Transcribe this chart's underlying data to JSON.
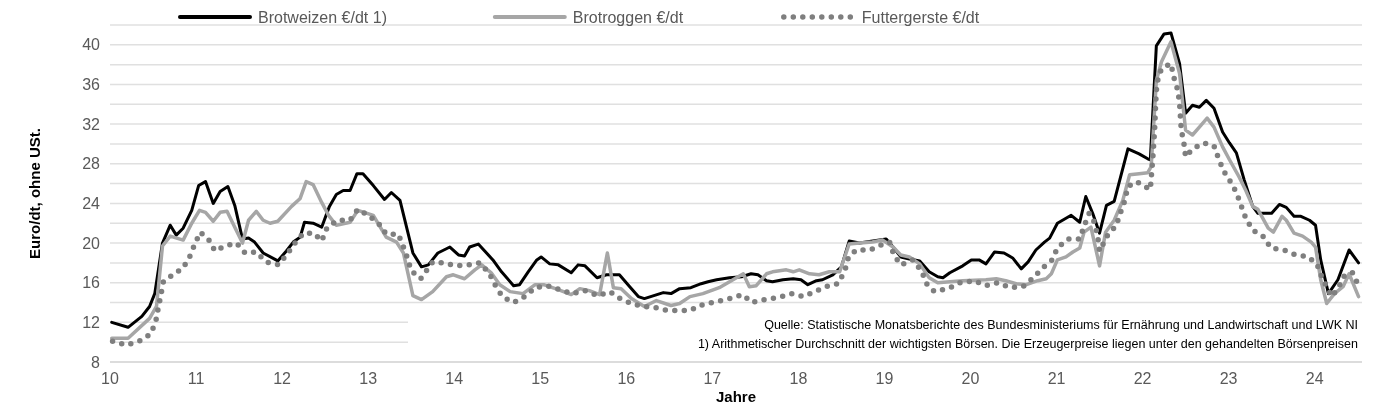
{
  "chart_data": {
    "type": "line",
    "xlabel": "Jahre",
    "ylabel": "Euro/dt, ohne USt.",
    "xlim": [
      10,
      24.55
    ],
    "xticks": [
      10,
      11,
      12,
      13,
      14,
      15,
      16,
      17,
      18,
      19,
      20,
      21,
      22,
      23,
      24
    ],
    "ylim": [
      8,
      42
    ],
    "yticks": [
      8,
      {
        "value": 10,
        "label": null
      },
      12,
      {
        "value": 14,
        "label": null
      },
      16,
      {
        "value": 18,
        "label": null
      },
      20,
      {
        "value": 22,
        "label": null
      },
      24,
      {
        "value": 26,
        "label": null
      },
      28,
      {
        "value": 30,
        "label": null
      },
      32,
      {
        "value": 34,
        "label": null
      },
      36,
      {
        "value": 38,
        "label": null
      },
      40,
      {
        "value": 42,
        "label": null
      }
    ],
    "grid": "y",
    "legend": "top left",
    "marker": "none",
    "annotations": [
      "Quelle: Statistische Monatsberichte des Bundesministeriums für Ernährung und Landwirtschaft und LWK NI",
      "1) Arithmetischer Durchschnitt der wichtigsten Börsen. Die Erzeugerpreise liegen unter den gehandelten Börsenpreisen"
    ],
    "series": [
      {
        "name": "Brotweizen €/dt 1)",
        "color": "#000000",
        "line_style": "solid",
        "x": [
          10.02,
          10.21,
          10.37,
          10.46,
          10.52,
          10.61,
          10.7,
          10.77,
          10.85,
          10.95,
          11.03,
          11.11,
          11.2,
          11.28,
          11.37,
          11.45,
          11.54,
          11.61,
          11.68,
          11.78,
          11.95,
          12.05,
          12.13,
          12.21,
          12.26,
          12.36,
          12.46,
          12.55,
          12.63,
          12.71,
          12.79,
          12.87,
          12.94,
          13.06,
          13.19,
          13.27,
          13.37,
          13.52,
          13.62,
          13.7,
          13.81,
          13.95,
          14.05,
          14.12,
          14.18,
          14.28,
          14.45,
          14.55,
          14.69,
          14.76,
          14.86,
          14.96,
          15.01,
          15.11,
          15.21,
          15.36,
          15.44,
          15.52,
          15.66,
          15.77,
          15.92,
          16.04,
          16.14,
          16.21,
          16.43,
          16.52,
          16.62,
          16.75,
          16.87,
          16.95,
          17.05,
          17.2,
          17.34,
          17.45,
          17.53,
          17.63,
          17.7,
          17.82,
          17.94,
          18.03,
          18.11,
          18.21,
          18.28,
          18.4,
          18.5,
          18.59,
          18.71,
          19.02,
          19.1,
          19.19,
          19.29,
          19.41,
          19.52,
          19.62,
          19.68,
          19.76,
          19.91,
          20.01,
          20.1,
          20.18,
          20.28,
          20.39,
          20.49,
          20.59,
          20.67,
          20.76,
          20.86,
          20.92,
          21.01,
          21.17,
          21.27,
          21.34,
          21.42,
          21.5,
          21.58,
          21.67,
          21.83,
          21.96,
          22.06,
          22.09,
          22.16,
          22.25,
          22.33,
          22.43,
          22.5,
          22.58,
          22.66,
          22.74,
          22.83,
          22.93,
          23.01,
          23.09,
          23.18,
          23.28,
          23.34,
          23.5,
          23.59,
          23.67,
          23.76,
          23.84,
          23.94,
          24.01,
          24.07,
          24.16,
          24.27,
          24.4,
          24.51
        ],
        "values": [
          12.0,
          11.5,
          12.6,
          13.6,
          14.9,
          20.0,
          21.8,
          20.8,
          21.5,
          23.3,
          25.8,
          26.2,
          24.0,
          25.2,
          25.7,
          23.8,
          20.4,
          20.5,
          20.1,
          19.0,
          18.2,
          19.2,
          20.1,
          20.6,
          22.1,
          22.0,
          21.6,
          23.7,
          24.9,
          25.3,
          25.3,
          27.0,
          27.0,
          25.8,
          24.4,
          25.1,
          24.3,
          19.0,
          17.6,
          17.8,
          19.0,
          19.6,
          18.8,
          18.7,
          19.6,
          19.9,
          18.3,
          17.1,
          15.7,
          15.8,
          17.1,
          18.3,
          18.6,
          17.9,
          17.8,
          17.0,
          17.8,
          17.7,
          16.5,
          16.8,
          16.8,
          15.6,
          14.6,
          14.4,
          15.0,
          14.9,
          15.4,
          15.5,
          15.9,
          16.1,
          16.3,
          16.5,
          16.6,
          16.9,
          16.8,
          16.2,
          16.1,
          16.3,
          16.4,
          16.3,
          15.8,
          16.2,
          16.3,
          16.8,
          17.6,
          20.2,
          20.0,
          20.4,
          19.6,
          18.6,
          18.4,
          18.2,
          17.1,
          16.6,
          16.5,
          17.0,
          17.7,
          18.3,
          18.3,
          17.9,
          19.1,
          19.0,
          18.5,
          17.4,
          18.1,
          19.3,
          20.1,
          20.5,
          22.0,
          22.8,
          22.1,
          24.7,
          23.0,
          21.0,
          23.8,
          24.2,
          29.5,
          29.0,
          28.5,
          28.4,
          39.9,
          41.1,
          41.2,
          38.1,
          33.1,
          33.9,
          33.7,
          34.4,
          33.6,
          31.2,
          30.1,
          29.1,
          26.4,
          23.7,
          23.0,
          23.0,
          23.9,
          23.6,
          22.7,
          22.7,
          22.3,
          21.8,
          18.3,
          14.9,
          16.3,
          19.3,
          18.0
        ]
      },
      {
        "name": "Brotroggen €/dt",
        "color": "#a6a6a6",
        "line_style": "solid",
        "x": [
          10.02,
          10.21,
          10.46,
          10.54,
          10.61,
          10.7,
          10.85,
          10.95,
          11.04,
          11.11,
          11.2,
          11.28,
          11.36,
          11.45,
          11.54,
          11.61,
          11.7,
          11.78,
          11.86,
          11.95,
          12.11,
          12.21,
          12.28,
          12.36,
          12.46,
          12.54,
          12.63,
          12.79,
          12.88,
          13.06,
          13.21,
          13.33,
          13.41,
          13.52,
          13.62,
          13.75,
          13.91,
          13.99,
          14.12,
          14.24,
          14.32,
          14.43,
          14.53,
          14.65,
          14.8,
          14.94,
          15.04,
          15.21,
          15.36,
          15.46,
          15.57,
          15.69,
          15.78,
          15.85,
          15.94,
          16.06,
          16.21,
          16.35,
          16.52,
          16.62,
          16.74,
          16.89,
          17.08,
          17.2,
          17.36,
          17.43,
          17.51,
          17.63,
          17.7,
          17.86,
          17.94,
          18.01,
          18.13,
          18.24,
          18.36,
          18.48,
          18.59,
          18.71,
          18.86,
          18.98,
          19.1,
          19.19,
          19.29,
          19.41,
          19.52,
          19.62,
          19.76,
          19.91,
          20.18,
          20.3,
          20.41,
          20.53,
          20.65,
          20.78,
          20.88,
          20.94,
          21.01,
          21.11,
          21.19,
          21.27,
          21.32,
          21.4,
          21.5,
          21.57,
          21.67,
          21.77,
          21.85,
          21.96,
          22.06,
          22.1,
          22.16,
          22.22,
          22.33,
          22.43,
          22.5,
          22.58,
          22.66,
          22.75,
          22.83,
          22.93,
          23.01,
          23.12,
          23.2,
          23.28,
          23.34,
          23.46,
          23.52,
          23.62,
          23.67,
          23.76,
          23.86,
          23.96,
          24.01,
          24.07,
          24.14,
          24.23,
          24.33,
          24.4,
          24.51
        ],
        "values": [
          10.4,
          10.4,
          12.4,
          13.6,
          19.7,
          20.7,
          20.3,
          22.0,
          23.3,
          23.1,
          22.2,
          23.1,
          23.2,
          21.6,
          20.0,
          22.3,
          23.2,
          22.3,
          22.0,
          22.2,
          23.7,
          24.5,
          26.2,
          25.9,
          24.1,
          22.8,
          21.8,
          22.1,
          23.3,
          22.8,
          20.6,
          20.1,
          19.0,
          14.7,
          14.3,
          15.1,
          16.6,
          16.8,
          16.4,
          17.3,
          17.8,
          17.0,
          15.8,
          15.1,
          14.9,
          15.8,
          15.8,
          15.3,
          14.8,
          15.4,
          15.2,
          14.8,
          19.0,
          15.5,
          15.4,
          14.4,
          13.6,
          14.2,
          13.7,
          13.9,
          14.6,
          14.9,
          15.5,
          16.1,
          16.9,
          15.6,
          15.7,
          16.9,
          17.1,
          17.3,
          17.1,
          17.3,
          16.9,
          16.8,
          17.1,
          17.1,
          19.9,
          20.0,
          20.1,
          20.3,
          19.6,
          18.8,
          18.6,
          17.9,
          16.5,
          16.0,
          16.1,
          16.2,
          16.3,
          16.4,
          16.2,
          15.9,
          15.8,
          16.2,
          16.4,
          16.9,
          18.3,
          18.6,
          19.1,
          19.5,
          21.1,
          21.6,
          17.7,
          21.1,
          22.3,
          24.3,
          26.9,
          27.0,
          27.1,
          27.7,
          36.4,
          38.3,
          40.3,
          37.1,
          31.4,
          30.9,
          31.7,
          32.6,
          31.7,
          29.7,
          28.4,
          26.7,
          25.3,
          23.7,
          23.4,
          21.5,
          21.1,
          22.7,
          22.3,
          21.0,
          20.7,
          20.1,
          19.6,
          16.3,
          13.9,
          14.9,
          15.6,
          16.9,
          14.6
        ]
      },
      {
        "name": "Futtergerste €/dt",
        "color": "#7f7f7f",
        "line_style": "dotted",
        "x": [
          10.03,
          10.19,
          10.34,
          10.47,
          10.53,
          10.56,
          10.59,
          10.62,
          10.73,
          10.85,
          10.93,
          10.99,
          11.05,
          11.15,
          11.22,
          11.34,
          11.47,
          11.57,
          11.7,
          11.81,
          11.96,
          12.06,
          12.15,
          12.25,
          12.37,
          12.46,
          12.52,
          12.64,
          12.79,
          12.88,
          13.0,
          13.12,
          13.21,
          13.35,
          13.41,
          13.46,
          13.5,
          13.61,
          13.75,
          13.87,
          14.02,
          14.16,
          14.3,
          14.41,
          14.48,
          14.56,
          14.69,
          14.82,
          14.94,
          15.08,
          15.23,
          15.37,
          15.52,
          15.67,
          15.81,
          15.93,
          16.06,
          16.19,
          16.33,
          16.47,
          16.6,
          16.74,
          16.89,
          17.05,
          17.2,
          17.35,
          17.46,
          17.61,
          17.76,
          17.92,
          18.06,
          18.19,
          18.32,
          18.46,
          18.54,
          18.58,
          18.67,
          18.83,
          18.96,
          19.06,
          19.11,
          19.19,
          19.33,
          19.43,
          19.49,
          19.58,
          19.74,
          19.88,
          20.04,
          20.18,
          20.32,
          20.46,
          20.61,
          20.73,
          20.84,
          20.95,
          21.01,
          21.13,
          21.27,
          21.32,
          21.38,
          21.44,
          21.48,
          21.5,
          21.6,
          21.69,
          21.74,
          21.79,
          21.83,
          21.93,
          22.09,
          22.12,
          22.14,
          22.15,
          22.16,
          22.18,
          22.22,
          22.33,
          22.36,
          22.41,
          22.43,
          22.44,
          22.45,
          22.48,
          22.5,
          22.58,
          22.71,
          22.83,
          22.88,
          22.94,
          23.02,
          23.09,
          23.14,
          23.2,
          23.28,
          23.41,
          23.49,
          23.64,
          23.78,
          23.93,
          24.03,
          24.09,
          24.2,
          24.28,
          24.35,
          24.44,
          24.51
        ],
        "values": [
          10.1,
          9.7,
          10.1,
          10.8,
          12.0,
          13.4,
          14.7,
          16.1,
          16.8,
          17.5,
          18.7,
          20.0,
          21.1,
          20.3,
          19.2,
          19.7,
          20.0,
          19.0,
          19.1,
          18.1,
          17.8,
          18.9,
          20.0,
          21.0,
          21.0,
          20.2,
          21.5,
          22.3,
          22.3,
          23.4,
          22.8,
          22.0,
          20.9,
          20.9,
          19.6,
          18.4,
          17.2,
          16.4,
          18.1,
          18.0,
          17.7,
          17.8,
          18.0,
          16.9,
          15.7,
          14.6,
          14.0,
          14.6,
          15.5,
          15.7,
          15.3,
          14.9,
          15.2,
          14.7,
          15.1,
          14.4,
          13.9,
          13.6,
          13.5,
          13.2,
          13.2,
          13.2,
          13.8,
          14.1,
          14.4,
          14.8,
          14.0,
          14.3,
          14.5,
          14.9,
          14.6,
          15.1,
          15.6,
          15.9,
          17.2,
          18.5,
          19.3,
          19.3,
          19.8,
          20.1,
          18.8,
          17.8,
          18.3,
          17.2,
          15.9,
          15.1,
          15.4,
          16.0,
          16.2,
          15.7,
          16.0,
          15.5,
          15.6,
          16.5,
          17.5,
          18.3,
          19.5,
          20.4,
          20.4,
          21.7,
          23.0,
          22.1,
          20.6,
          19.2,
          20.9,
          21.7,
          23.0,
          24.2,
          25.7,
          26.2,
          25.4,
          28.7,
          31.4,
          33.6,
          35.4,
          36.6,
          37.6,
          38.1,
          36.8,
          35.4,
          34.1,
          32.7,
          31.4,
          30.1,
          28.7,
          29.5,
          30.1,
          29.8,
          28.6,
          27.3,
          26.2,
          25.1,
          23.9,
          22.5,
          21.3,
          20.6,
          19.5,
          19.3,
          18.8,
          18.6,
          17.8,
          16.4,
          14.6,
          15.6,
          16.8,
          17.0,
          15.7
        ]
      }
    ]
  }
}
